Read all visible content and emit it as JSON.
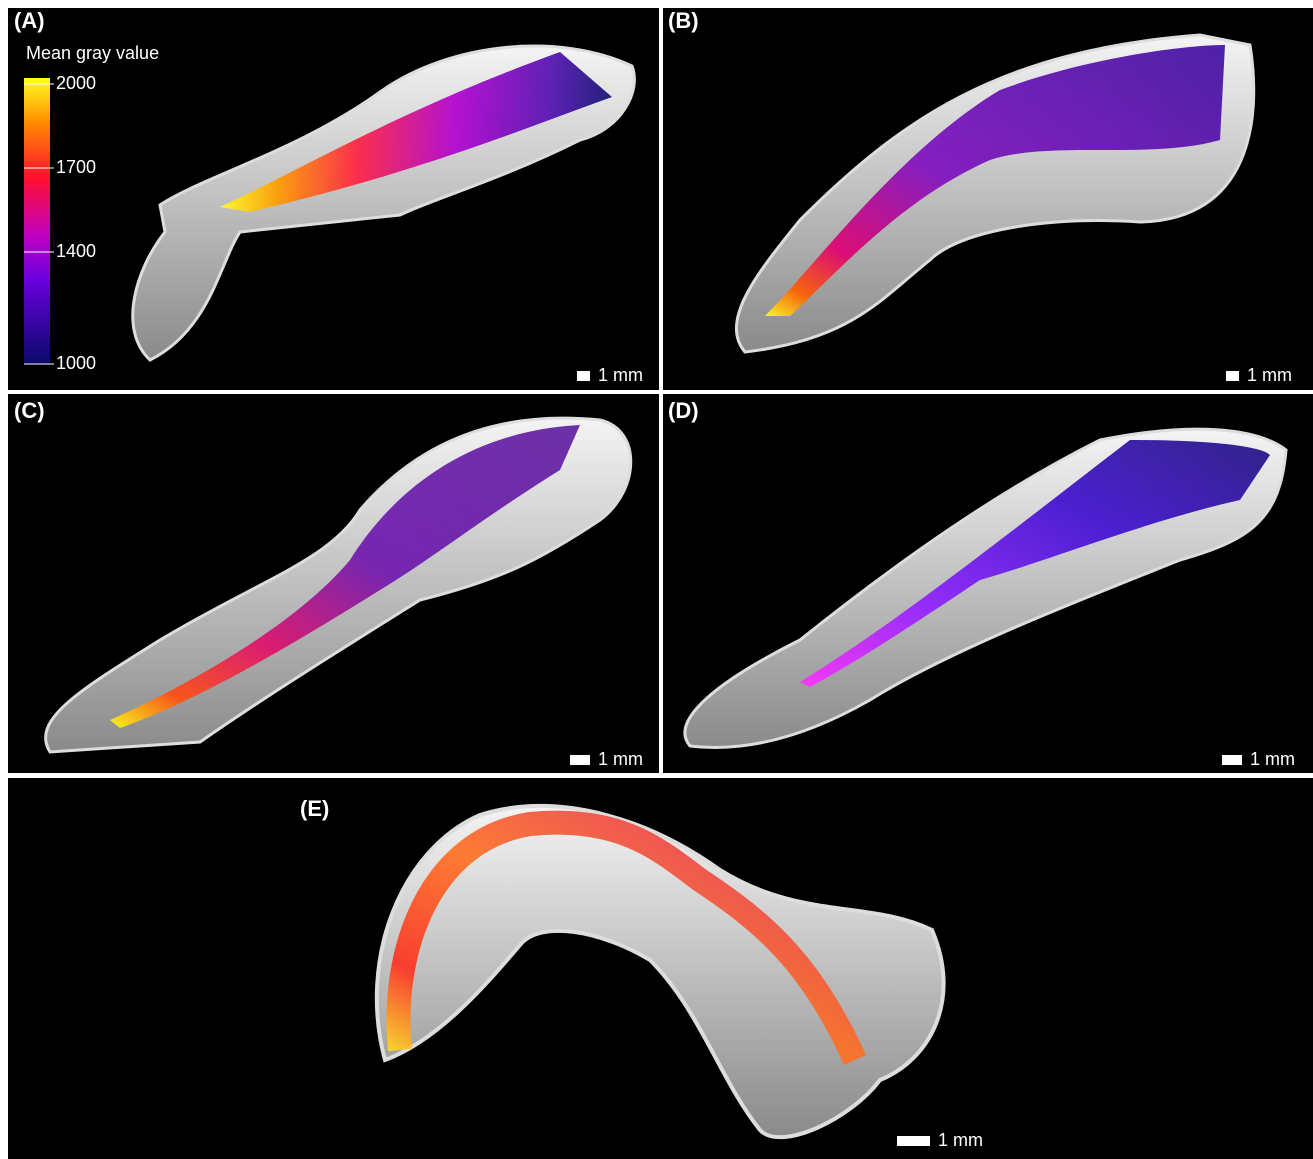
{
  "panels": [
    {
      "label": "(A)",
      "scale_bar": "1 mm"
    },
    {
      "label": "(B)",
      "scale_bar": "1 mm"
    },
    {
      "label": "(C)",
      "scale_bar": "1 mm"
    },
    {
      "label": "(D)",
      "scale_bar": "1 mm"
    },
    {
      "label": "(E)",
      "scale_bar": "1 mm"
    }
  ],
  "colorbar": {
    "title": "Mean gray value",
    "lim": [
      1000,
      2000
    ],
    "ticks": [
      2000,
      1700,
      1400,
      1000
    ]
  }
}
